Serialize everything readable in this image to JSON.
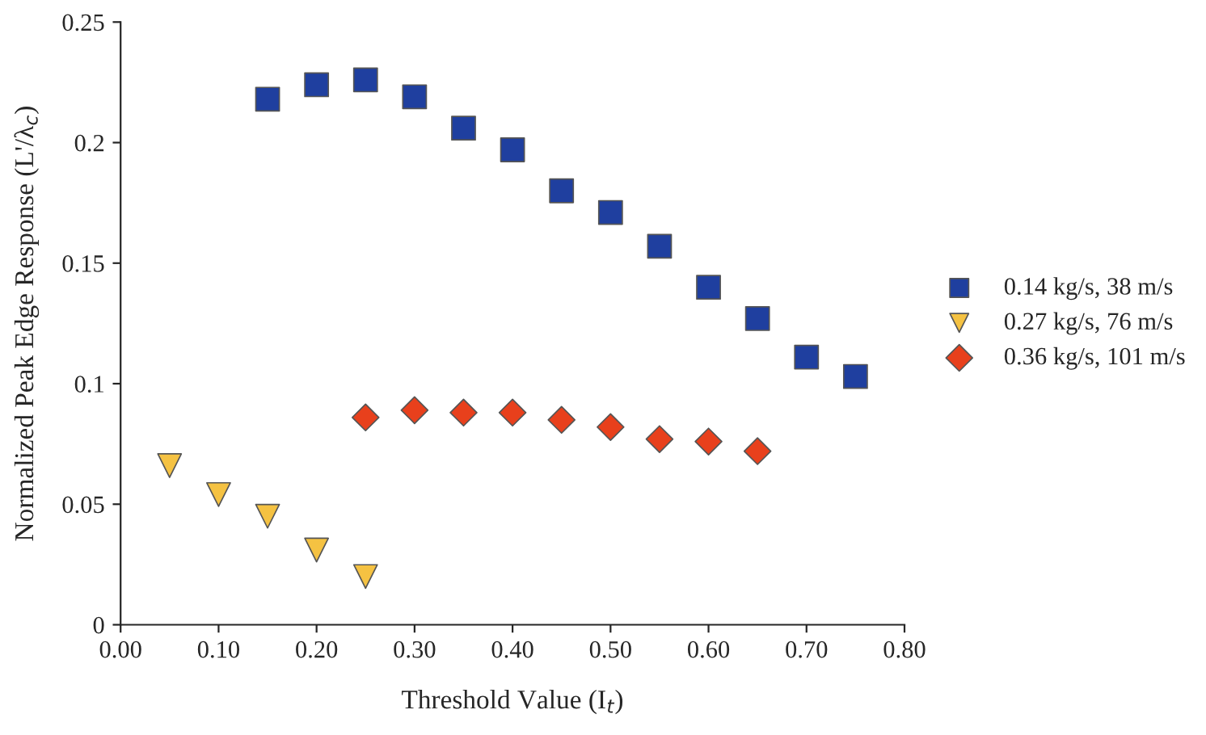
{
  "chart_data": {
    "type": "scatter",
    "xlabel": "Threshold Value (I$_{t}$)",
    "ylabel": "Normalized Peak Edge Response (L'/λ$_{c}$)",
    "xlim": [
      0,
      0.8
    ],
    "xticks": [
      {
        "value": 0,
        "label": "0.00"
      },
      {
        "value": 0.1,
        "label": "0.10"
      },
      {
        "value": 0.2,
        "label": "0.20"
      },
      {
        "value": 0.3,
        "label": "0.30"
      },
      {
        "value": 0.4,
        "label": "0.40"
      },
      {
        "value": 0.5,
        "label": "0.50"
      },
      {
        "value": 0.6,
        "label": "0.60"
      },
      {
        "value": 0.7,
        "label": "0.70"
      },
      {
        "value": 0.8,
        "label": "0.80"
      }
    ],
    "ylim": [
      0,
      0.25
    ],
    "yticks": [
      0,
      0.05,
      0.1,
      0.15,
      0.2,
      0.25
    ],
    "grid": false,
    "legend": "right",
    "series": [
      {
        "name": "0.14 kg/s, 38 m/s",
        "color": "#1f3f9f",
        "marker": "square",
        "x": [
          0.15,
          0.2,
          0.25,
          0.3,
          0.35,
          0.4,
          0.45,
          0.5,
          0.55,
          0.6,
          0.65,
          0.7,
          0.75
        ],
        "values": [
          0.218,
          0.224,
          0.226,
          0.219,
          0.206,
          0.197,
          0.18,
          0.171,
          0.157,
          0.14,
          0.127,
          0.111,
          0.103
        ]
      },
      {
        "name": "0.27 kg/s, 76 m/s",
        "color": "#f5c242",
        "marker": "triangle_down",
        "x": [
          0.05,
          0.1,
          0.15,
          0.2,
          0.25
        ],
        "values": [
          0.066,
          0.054,
          0.045,
          0.031,
          0.02
        ]
      },
      {
        "name": "0.36 kg/s, 101 m/s",
        "color": "#e8401c",
        "marker": "diamond",
        "x": [
          0.25,
          0.3,
          0.35,
          0.4,
          0.45,
          0.5,
          0.55,
          0.6,
          0.65
        ],
        "values": [
          0.086,
          0.089,
          0.088,
          0.088,
          0.085,
          0.082,
          0.077,
          0.076,
          0.072
        ]
      }
    ]
  }
}
